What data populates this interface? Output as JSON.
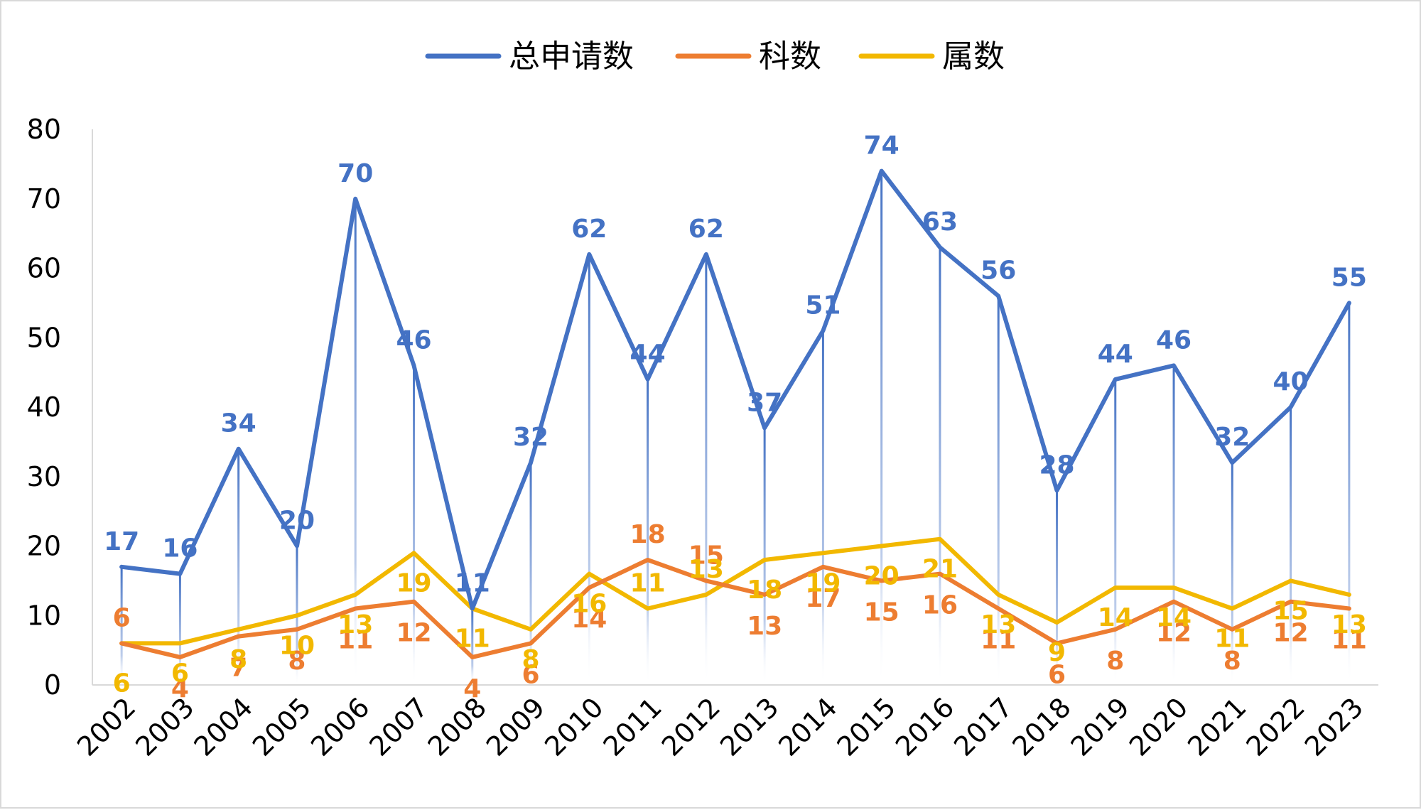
{
  "chart_data": {
    "type": "line",
    "title": "",
    "xlabel": "",
    "ylabel": "",
    "categories": [
      "2002",
      "2003",
      "2004",
      "2005",
      "2006",
      "2007",
      "2008",
      "2009",
      "2010",
      "2011",
      "2012",
      "2013",
      "2014",
      "2015",
      "2016",
      "2017",
      "2018",
      "2019",
      "2020",
      "2021",
      "2022",
      "2023"
    ],
    "series": [
      {
        "name": "总申请数",
        "color": "#4472C4",
        "values": [
          17,
          16,
          34,
          20,
          70,
          46,
          11,
          32,
          62,
          44,
          62,
          37,
          51,
          74,
          63,
          56,
          28,
          44,
          46,
          32,
          40,
          55
        ]
      },
      {
        "name": "科数",
        "color": "#ED7D31",
        "values": [
          6,
          4,
          7,
          8,
          11,
          12,
          4,
          6,
          14,
          18,
          15,
          13,
          17,
          15,
          16,
          11,
          6,
          8,
          12,
          8,
          12,
          11
        ]
      },
      {
        "name": "属数",
        "color": "#F2B800",
        "values": [
          6,
          6,
          8,
          10,
          13,
          19,
          11,
          8,
          16,
          11,
          13,
          18,
          19,
          20,
          21,
          13,
          9,
          14,
          14,
          11,
          15,
          13
        ]
      }
    ],
    "ylim": [
      0,
      80
    ],
    "yticks": [
      0,
      10,
      20,
      30,
      40,
      50,
      60,
      70,
      80
    ],
    "legend": "top-center",
    "grid": false,
    "drop_lines": true,
    "data_labels": true
  }
}
